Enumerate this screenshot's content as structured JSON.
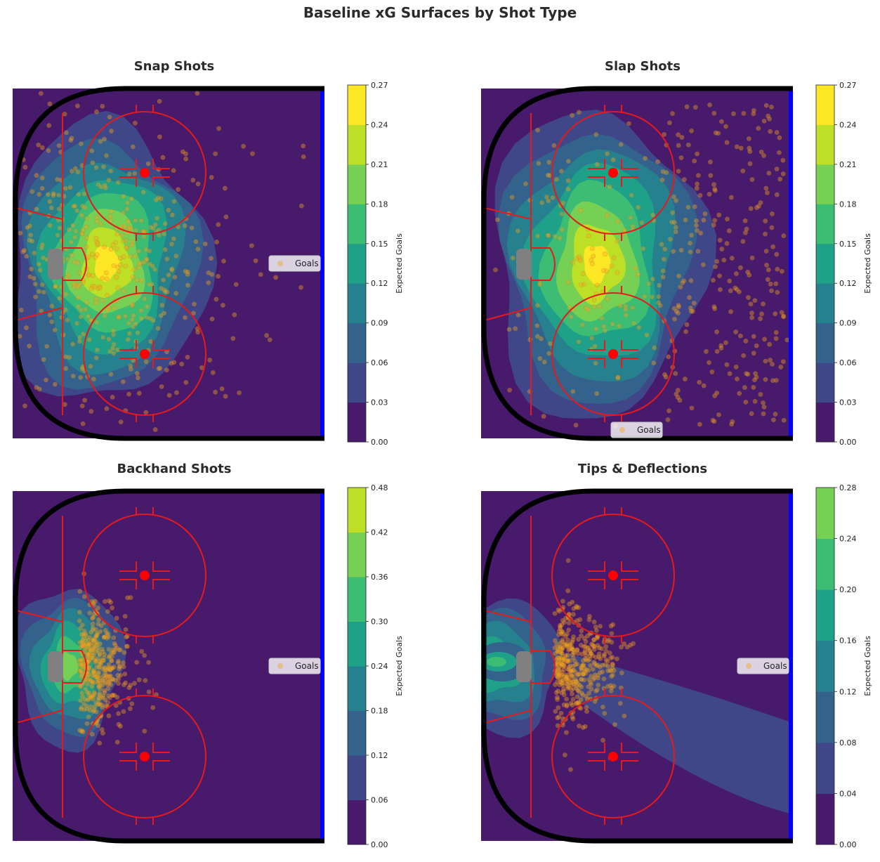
{
  "figure_title": "Baseline xG Surfaces by Shot Type",
  "colors": {
    "viridis_levels": [
      "#481a6c",
      "#3f4788",
      "#33638d",
      "#27808e",
      "#1fa088",
      "#3dbc74",
      "#76d054",
      "#bddf26",
      "#fde725"
    ],
    "crease": "#808080",
    "shot_marker": "#f5a623",
    "rink_lines": "#e41a1c",
    "blue_line": "#0000ff",
    "boards": "#000000"
  },
  "chart_data": [
    {
      "type": "heatmap",
      "title": "Snap Shots",
      "colorbar_label": "Expected Goals",
      "colorbar_ticks": [
        "0.00",
        "0.03",
        "0.06",
        "0.09",
        "0.12",
        "0.15",
        "0.18",
        "0.21",
        "0.24",
        "0.27"
      ],
      "vmax": 0.27,
      "legend": {
        "label": "Goals",
        "position": "center-right"
      },
      "hotspot": {
        "x": 0.3,
        "y": 0.5,
        "peak_level": 8,
        "spread_x": 0.3,
        "spread_y": 0.38
      },
      "shots": {
        "count": 520,
        "spread": "wide"
      }
    },
    {
      "type": "heatmap",
      "title": "Slap Shots",
      "colorbar_label": "Expected Goals",
      "colorbar_ticks": [
        "0.00",
        "0.03",
        "0.06",
        "0.09",
        "0.12",
        "0.15",
        "0.18",
        "0.21",
        "0.24",
        "0.27"
      ],
      "vmax": 0.27,
      "legend": {
        "label": "Goals",
        "position": "lower-center"
      },
      "hotspot": {
        "x": 0.37,
        "y": 0.5,
        "peak_level": 8,
        "spread_x": 0.32,
        "spread_y": 0.42
      },
      "shots": {
        "count": 420,
        "spread": "perimeter"
      }
    },
    {
      "type": "heatmap",
      "title": "Backhand Shots",
      "colorbar_label": "Expected Goals",
      "colorbar_ticks": [
        "0.00",
        "0.06",
        "0.12",
        "0.18",
        "0.24",
        "0.30",
        "0.36",
        "0.42",
        "0.48"
      ],
      "vmax": 0.48,
      "legend": {
        "label": "Goals",
        "position": "center-right"
      },
      "hotspot": {
        "x": 0.18,
        "y": 0.5,
        "peak_level": 6,
        "spread_x": 0.16,
        "spread_y": 0.22
      },
      "shots": {
        "count": 380,
        "spread": "crease"
      }
    },
    {
      "type": "heatmap",
      "title": "Tips & Deflections",
      "colorbar_label": "Expected Goals",
      "colorbar_ticks": [
        "0.00",
        "0.04",
        "0.08",
        "0.12",
        "0.16",
        "0.20",
        "0.24",
        "0.28"
      ],
      "vmax": 0.28,
      "legend": {
        "label": "Goals",
        "position": "center-right"
      },
      "hotspot": {
        "x": 0.05,
        "y": 0.5,
        "peak_level": 5,
        "spread_x": 0.2,
        "spread_y": 0.18
      },
      "shots": {
        "count": 400,
        "spread": "slot"
      }
    }
  ]
}
